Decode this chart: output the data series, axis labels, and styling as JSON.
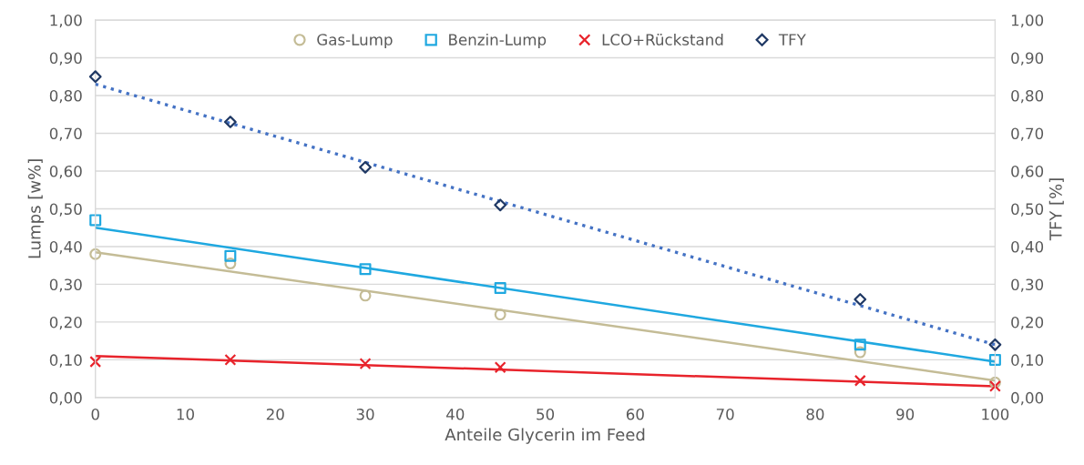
{
  "chart_data": {
    "type": "scatter",
    "xlabel": "Anteile Glycerin im Feed",
    "ylabel": "Lumps [w%]",
    "y2label": "TFY [%]",
    "xlim": [
      0,
      100
    ],
    "xticks": [
      0,
      10,
      20,
      30,
      40,
      50,
      60,
      70,
      80,
      90,
      100
    ],
    "ylim": [
      0,
      1
    ],
    "yticks": [
      {
        "value": 0,
        "label": "0,00"
      },
      {
        "value": 0.1,
        "label": "0,10"
      },
      {
        "value": 0.2,
        "label": "0,20"
      },
      {
        "value": 0.3,
        "label": "0,30"
      },
      {
        "value": 0.4,
        "label": "0,40"
      },
      {
        "value": 0.5,
        "label": "0,50"
      },
      {
        "value": 0.6,
        "label": "0,60"
      },
      {
        "value": 0.7,
        "label": "0,70"
      },
      {
        "value": 0.8,
        "label": "0,80"
      },
      {
        "value": 0.9,
        "label": "0,90"
      },
      {
        "value": 1,
        "label": "1,00"
      }
    ],
    "y2lim": [
      0,
      1
    ],
    "y2ticks": [
      {
        "value": 0,
        "label": "0,00"
      },
      {
        "value": 0.1,
        "label": "0,10"
      },
      {
        "value": 0.2,
        "label": "0,20"
      },
      {
        "value": 0.3,
        "label": "0,30"
      },
      {
        "value": 0.4,
        "label": "0,40"
      },
      {
        "value": 0.5,
        "label": "0,50"
      },
      {
        "value": 0.6,
        "label": "0,60"
      },
      {
        "value": 0.7,
        "label": "0,70"
      },
      {
        "value": 0.8,
        "label": "0,80"
      },
      {
        "value": 0.9,
        "label": "0,90"
      },
      {
        "value": 1,
        "label": "1,00"
      }
    ],
    "grid": "y",
    "legend": "top",
    "series": [
      {
        "name": "Gas-Lump",
        "marker": "circle",
        "color": "#c4bc96",
        "x": [
          0,
          15,
          30,
          45,
          85,
          100
        ],
        "values": [
          0.38,
          0.355,
          0.27,
          0.22,
          0.12,
          0.04
        ]
      },
      {
        "name": "Benzin-Lump",
        "marker": "square",
        "color": "#1fa8e0",
        "x": [
          0,
          15,
          30,
          45,
          85,
          100
        ],
        "values": [
          0.47,
          0.375,
          0.34,
          0.29,
          0.14,
          0.1
        ]
      },
      {
        "name": "LCO+Rückstand",
        "marker": "cross",
        "color": "#e8232b",
        "x": [
          0,
          15,
          30,
          45,
          85,
          100
        ],
        "values": [
          0.095,
          0.1,
          0.09,
          0.08,
          0.045,
          0.03
        ]
      },
      {
        "name": "TFY",
        "marker": "diamond",
        "color": "#1f3864",
        "axis": "y2",
        "x": [
          0,
          15,
          30,
          45,
          85,
          100
        ],
        "values": [
          0.85,
          0.73,
          0.61,
          0.51,
          0.26,
          0.14
        ]
      },
      {
        "type": "line",
        "color": "#c4bc96",
        "line_style": "solid",
        "x": [
          0,
          100
        ],
        "values": [
          0.385,
          0.045
        ]
      },
      {
        "type": "line",
        "color": "#1fa8e0",
        "line_style": "solid",
        "x": [
          0,
          100
        ],
        "values": [
          0.45,
          0.095
        ]
      },
      {
        "type": "line",
        "color": "#e8232b",
        "line_style": "solid",
        "x": [
          0,
          100
        ],
        "values": [
          0.11,
          0.03
        ]
      },
      {
        "type": "line",
        "color": "#4472c4",
        "line_style": "dotted",
        "axis": "y2",
        "x": [
          0,
          100
        ],
        "values": [
          0.83,
          0.14
        ]
      }
    ]
  }
}
